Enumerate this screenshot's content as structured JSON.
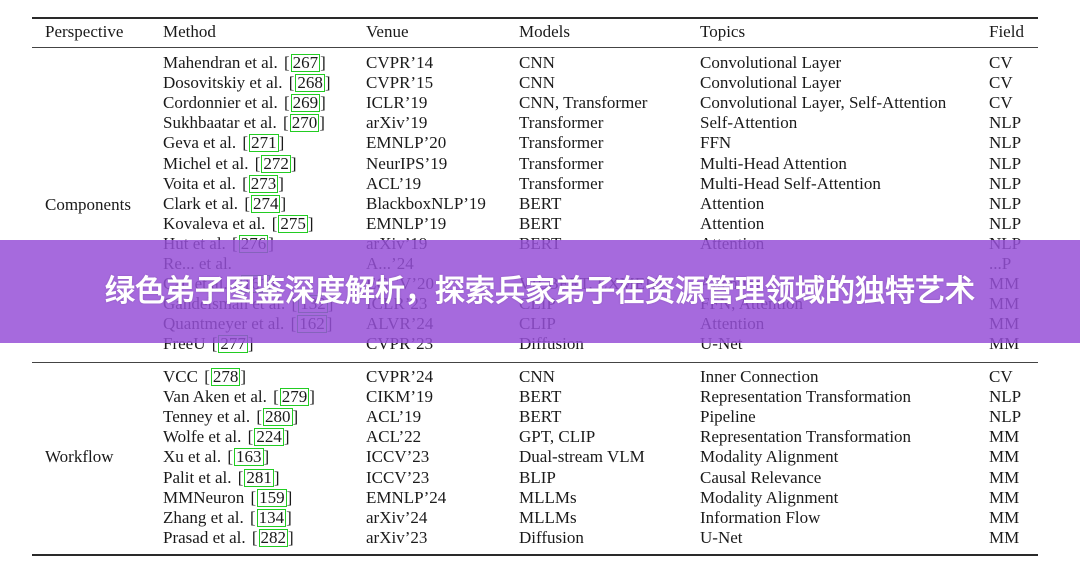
{
  "table": {
    "headers": {
      "perspective": "Perspective",
      "method": "Method",
      "venue": "Venue",
      "models": "Models",
      "topics": "Topics",
      "field": "Field"
    },
    "sections": [
      {
        "perspective": "Components",
        "rows": [
          {
            "method": "Mahendran et al.",
            "cite": "267",
            "venue": "CVPR’14",
            "models": "CNN",
            "topics": "Convolutional Layer",
            "field": "CV"
          },
          {
            "method": "Dosovitskiy et al.",
            "cite": "268",
            "venue": "CVPR’15",
            "models": "CNN",
            "topics": "Convolutional Layer",
            "field": "CV"
          },
          {
            "method": "Cordonnier et al.",
            "cite": "269",
            "venue": "ICLR’19",
            "models": "CNN, Transformer",
            "topics": "Convolutional Layer, Self-Attention",
            "field": "CV"
          },
          {
            "method": "Sukhbaatar et al.",
            "cite": "270",
            "venue": "arXiv’19",
            "models": "Transformer",
            "topics": "Self-Attention",
            "field": "NLP"
          },
          {
            "method": "Geva et al.",
            "cite": "271",
            "venue": "EMNLP’20",
            "models": "Transformer",
            "topics": "FFN",
            "field": "NLP"
          },
          {
            "method": "Michel et al.",
            "cite": "272",
            "venue": "NeurIPS’19",
            "models": "Transformer",
            "topics": "Multi-Head Attention",
            "field": "NLP"
          },
          {
            "method": "Voita et al.",
            "cite": "273",
            "venue": "ACL’19",
            "models": "Transformer",
            "topics": "Multi-Head Self-Attention",
            "field": "NLP"
          },
          {
            "method": "Clark et al.",
            "cite": "274",
            "venue": "BlackboxNLP’19",
            "models": "BERT",
            "topics": "Attention",
            "field": "NLP"
          },
          {
            "method": "Kovaleva et al.",
            "cite": "275",
            "venue": "EMNLP’19",
            "models": "BERT",
            "topics": "Attention",
            "field": "NLP"
          },
          {
            "method": "Hut et al.",
            "cite": "276",
            "venue": "arXiv’19",
            "models": "BERT",
            "topics": "Attention",
            "field": "NLP"
          },
          {
            "method": "Re... et al.",
            "cite": "",
            "venue": "A...’24",
            "models": "",
            "topics": "",
            "field": "...P"
          },
          {
            "method": "Cao et al.",
            "cite": "161",
            "venue": "ECCV’20",
            "models": "VILBERT, LXMERT",
            "topics": "Attention",
            "field": "MM"
          },
          {
            "method": "Gandelsman et al.",
            "cite": "132",
            "venue": "ICLR’23",
            "models": "CLIP",
            "topics": "FFN, Attention",
            "field": "MM"
          },
          {
            "method": "Quantmeyer et al.",
            "cite": "162",
            "venue": "ALVR’24",
            "models": "CLIP",
            "topics": "Attention",
            "field": "MM"
          },
          {
            "method": "FreeU",
            "cite": "277",
            "venue": "CVPR’23",
            "models": "Diffusion",
            "topics": "U-Net",
            "field": "MM"
          }
        ]
      },
      {
        "perspective": "Workflow",
        "rows": [
          {
            "method": "VCC",
            "cite": "278",
            "venue": "CVPR’24",
            "models": "CNN",
            "topics": "Inner Connection",
            "field": "CV"
          },
          {
            "method": "Van Aken et al.",
            "cite": "279",
            "venue": "CIKM’19",
            "models": "BERT",
            "topics": "Representation Transformation",
            "field": "NLP"
          },
          {
            "method": "Tenney et al.",
            "cite": "280",
            "venue": "ACL’19",
            "models": "BERT",
            "topics": "Pipeline",
            "field": "NLP"
          },
          {
            "method": "Wolfe et al.",
            "cite": "224",
            "venue": "ACL’22",
            "models": "GPT, CLIP",
            "topics": "Representation Transformation",
            "field": "MM"
          },
          {
            "method": "Xu et al.",
            "cite": "163",
            "venue": "ICCV’23",
            "models": "Dual-stream VLM",
            "topics": "Modality Alignment",
            "field": "MM"
          },
          {
            "method": "Palit et al.",
            "cite": "281",
            "venue": "ICCV’23",
            "models": "BLIP",
            "topics": "Causal Relevance",
            "field": "MM"
          },
          {
            "method": "MMNeuron",
            "cite": "159",
            "venue": "EMNLP’24",
            "models": "MLLMs",
            "topics": "Modality Alignment",
            "field": "MM"
          },
          {
            "method": "Zhang et al.",
            "cite": "134",
            "venue": "arXiv’24",
            "models": "MLLMs",
            "topics": "Information Flow",
            "field": "MM"
          },
          {
            "method": "Prasad et al.",
            "cite": "282",
            "venue": "arXiv’23",
            "models": "Diffusion",
            "topics": "U-Net",
            "field": "MM"
          }
        ]
      }
    ]
  },
  "banner": {
    "title": "绿色弟子图鉴深度解析，探索兵家弟子在资源管理领域的独特艺术",
    "color": "#9650d7"
  }
}
